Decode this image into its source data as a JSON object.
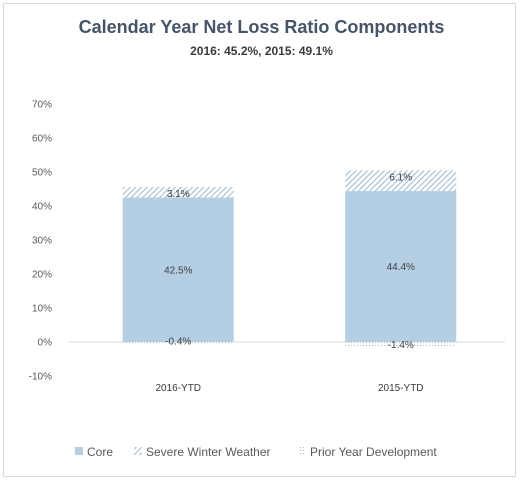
{
  "title": "Calendar Year Net Loss Ratio Components",
  "subtitle": "2016: 45.2%, 2015: 49.1%",
  "colors": {
    "core": "#b4cfe4",
    "hatch": "#7fa7c6",
    "axis": "#d9d9d9",
    "grid": "#e6e6e6"
  },
  "chart_data": {
    "type": "bar",
    "stacked": true,
    "title": "Calendar Year Net Loss Ratio Components",
    "subtitle": "2016: 45.2%, 2015: 49.1%",
    "categories": [
      "2016-YTD",
      "2015-YTD"
    ],
    "series": [
      {
        "name": "Core",
        "values": [
          42.5,
          44.4
        ],
        "labels": [
          "42.5%",
          "44.4%"
        ],
        "fill": "solid"
      },
      {
        "name": "Severe Winter Weather",
        "values": [
          3.1,
          6.1
        ],
        "labels": [
          "3.1%",
          "6.1%"
        ],
        "fill": "hatch"
      },
      {
        "name": "Prior Year Development",
        "values": [
          -0.4,
          -1.4
        ],
        "labels": [
          "-0.4%",
          "-1.4%"
        ],
        "fill": "dots"
      }
    ],
    "ylim": [
      -10,
      70
    ],
    "yticks": [
      -10,
      0,
      10,
      20,
      30,
      40,
      50,
      60,
      70
    ],
    "ytick_labels": [
      "-10%",
      "0%",
      "10%",
      "20%",
      "30%",
      "40%",
      "50%",
      "60%",
      "70%"
    ],
    "grid": false,
    "legend": "bottom"
  }
}
